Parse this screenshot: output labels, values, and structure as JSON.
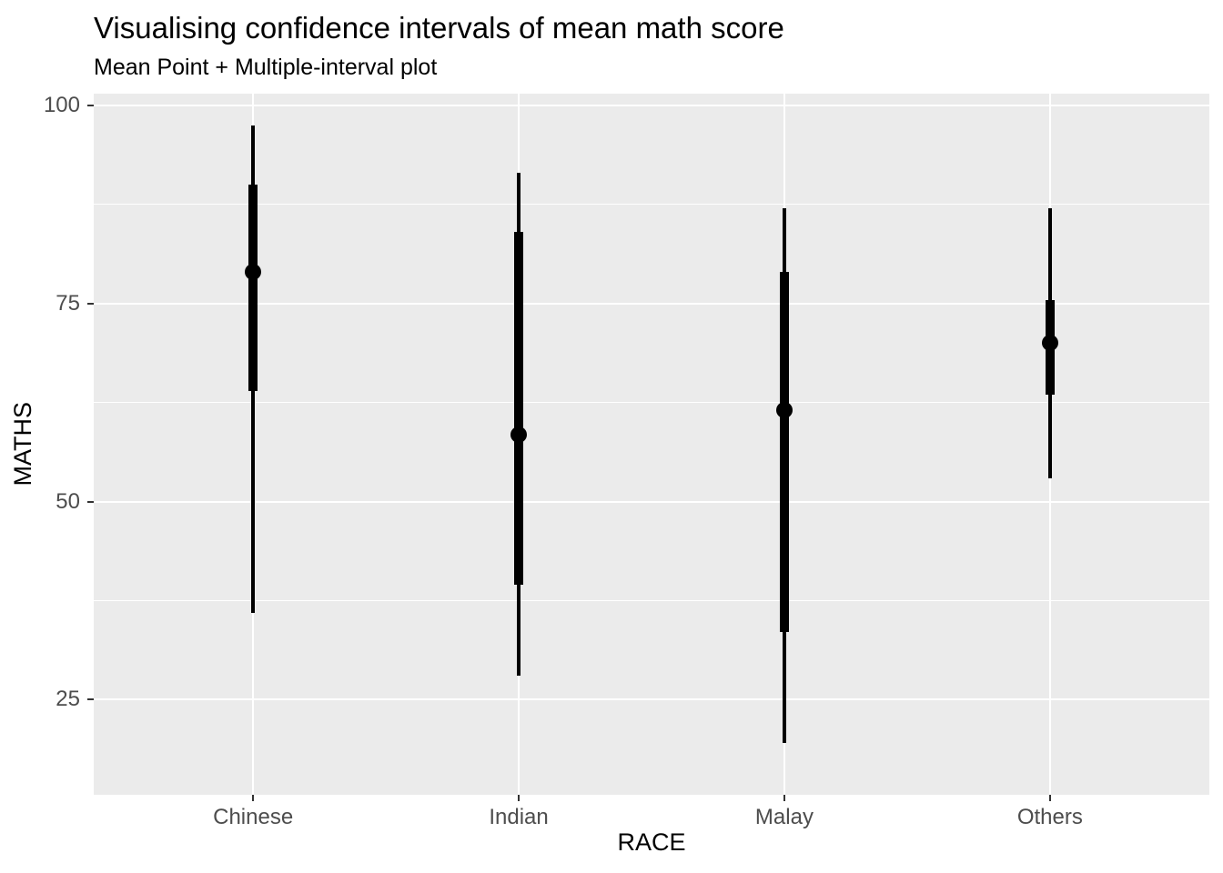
{
  "chart_data": {
    "type": "pointinterval",
    "title": "Visualising confidence intervals of mean math score",
    "subtitle": "Mean Point + Multiple-interval plot",
    "xlabel": "RACE",
    "ylabel": "MATHS",
    "categories": [
      "Chinese",
      "Indian",
      "Malay",
      "Others"
    ],
    "series": [
      {
        "category": "Chinese",
        "mean": 79,
        "thick_interval": [
          64,
          90
        ],
        "thin_interval": [
          36,
          97.5
        ]
      },
      {
        "category": "Indian",
        "mean": 58.5,
        "thick_interval": [
          39.5,
          84
        ],
        "thin_interval": [
          28,
          91.5
        ]
      },
      {
        "category": "Malay",
        "mean": 61.5,
        "thick_interval": [
          33.5,
          79
        ],
        "thin_interval": [
          19.5,
          87
        ]
      },
      {
        "category": "Others",
        "mean": 70,
        "thick_interval": [
          63.5,
          75.5
        ],
        "thin_interval": [
          53,
          87
        ]
      }
    ],
    "ylim": [
      13,
      101.5
    ],
    "yticks": [
      25,
      50,
      75,
      100
    ],
    "yticks_minor": [
      37.5,
      62.5,
      87.5
    ],
    "grid": "white major+minor horizontal lines and major vertical lines at each category, on grey panel",
    "legend": "none",
    "colors": {
      "point_interval": "#000000",
      "panel_bg": "#EBEBEB",
      "gridline": "#FFFFFF",
      "tick_label": "#4D4D4D",
      "tick_mark": "#333333",
      "axis_title": "#000000",
      "title": "#000000"
    }
  }
}
